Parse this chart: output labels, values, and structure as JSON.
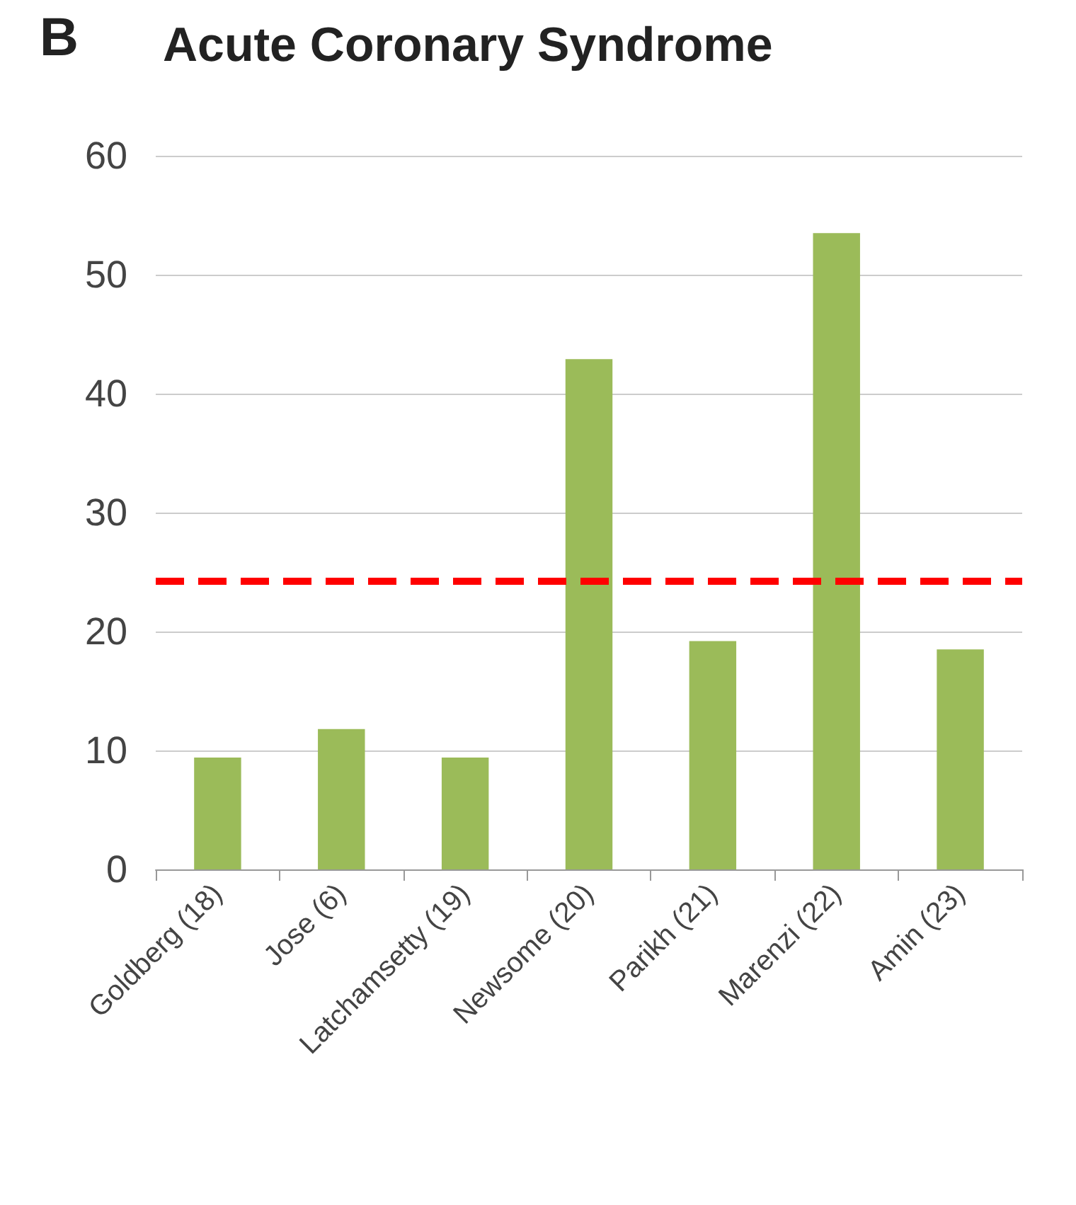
{
  "chart_data": {
    "type": "bar",
    "title": "Acute Coronary Syndrome",
    "annotations": [
      "B"
    ],
    "categories": [
      "Goldberg (18)",
      "Jose (6)",
      "Latchamsetty (19)",
      "Newsome (20)",
      "Parikh (21)",
      "Marenzi (22)",
      "Amin (23)"
    ],
    "values": [
      9.4,
      11.8,
      9.4,
      42.9,
      19.2,
      53.5,
      18.5
    ],
    "color": "#9bbb59",
    "ylim": [
      0,
      60
    ],
    "yticks": [
      0,
      10,
      20,
      30,
      40,
      50,
      60
    ],
    "grid": "y",
    "ref_lines": [
      {
        "axis": "y",
        "value": 24.3,
        "color": "#ff0000",
        "line_style": "dashed"
      }
    ]
  }
}
